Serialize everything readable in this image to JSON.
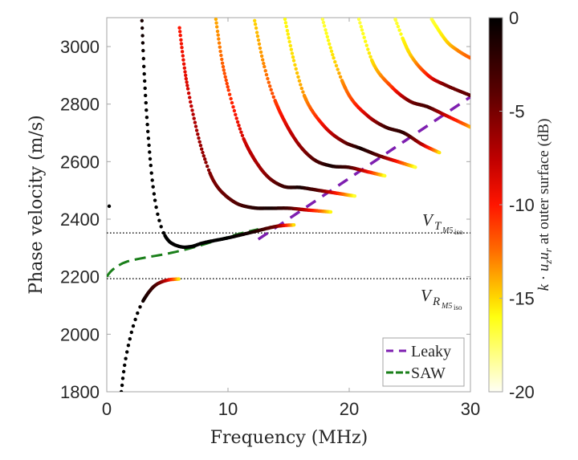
{
  "chart_data": {
    "type": "scatter",
    "title": "",
    "xlabel": "Frequency (MHz)",
    "ylabel": "Phase velocity (m/s)",
    "xlim": [
      0,
      30
    ],
    "ylim": [
      1800,
      3100
    ],
    "xticks": [
      "0",
      "10",
      "20",
      "30"
    ],
    "xtick_values": [
      0,
      10,
      20,
      30
    ],
    "yticks": [
      "1800",
      "2000",
      "2200",
      "2400",
      "2600",
      "2800",
      "3000"
    ],
    "ytick_values": [
      1800,
      2000,
      2200,
      2400,
      2600,
      2800,
      3000
    ],
    "grid": false,
    "colorbar": {
      "label": "k · u_z u_r at outer surface (dB)",
      "label_parts": {
        "k": "k",
        "dot": " · ",
        "uz": "u",
        "uz_sub": "z",
        "ur": "u",
        "ur_sub": "r",
        "rest": " at outer surface (dB)"
      },
      "range": [
        -20,
        0
      ],
      "ticks": [
        "0",
        "-5",
        "-10",
        "-15",
        "-20"
      ],
      "tick_values": [
        0,
        -5,
        -10,
        -15,
        -20
      ],
      "colormap": "hot (black-red-orange-yellow-white)"
    },
    "reference_lines": [
      {
        "name": "V_T_M5_iso",
        "label_main": "V",
        "label_sub": "T",
        "label_subsub": "M5",
        "label_subsubsub": "iso",
        "y": 2352,
        "style": "dotted"
      },
      {
        "name": "V_R_M5_iso",
        "label_main": "V",
        "label_sub": "R",
        "label_subsub": "M5",
        "label_subsubsub": "iso",
        "y": 2193,
        "style": "dotted"
      }
    ],
    "legend": {
      "placement": "bottom-right",
      "entries": [
        {
          "label": "Leaky",
          "color": "#7e1fb0",
          "style": "dashed"
        },
        {
          "label": "SAW",
          "color": "#1a7f1a",
          "style": "dashed"
        }
      ]
    },
    "series": [
      {
        "name": "Leaky",
        "type": "line",
        "color": "#7e1fb0",
        "x": [
          12.5,
          30
        ],
        "y": [
          2330,
          2825
        ]
      },
      {
        "name": "SAW",
        "type": "line",
        "color": "#1a7f1a",
        "x": [
          0,
          0.5,
          1.5,
          3,
          5,
          7,
          9,
          11,
          12.5
        ],
        "y": [
          2200,
          2225,
          2250,
          2265,
          2280,
          2300,
          2325,
          2350,
          2365
        ]
      },
      {
        "name": "mode-0-lower",
        "x": [
          1.2,
          1.5,
          2,
          2.6,
          3.2,
          4,
          5,
          6
        ],
        "y": [
          1800,
          1900,
          2000,
          2080,
          2130,
          2170,
          2188,
          2192
        ],
        "db": [
          0,
          0,
          0,
          0,
          -1,
          -3,
          -8,
          -16
        ]
      },
      {
        "name": "mode-0-isolated-point",
        "x": [
          0.2
        ],
        "y": [
          2445
        ],
        "db": [
          0
        ]
      },
      {
        "name": "mode-1",
        "x": [
          2.9,
          3.1,
          3.4,
          3.8,
          4.3,
          5,
          6,
          7,
          8,
          10,
          12,
          14,
          15.5
        ],
        "y": [
          3090,
          2900,
          2700,
          2520,
          2400,
          2330,
          2305,
          2305,
          2318,
          2335,
          2355,
          2375,
          2380
        ],
        "db": [
          -1,
          0,
          0,
          0,
          0,
          0,
          0,
          0,
          0,
          0,
          -1,
          -5,
          -16
        ]
      },
      {
        "name": "mode-2",
        "x": [
          6,
          6.5,
          7.2,
          8,
          9,
          10.5,
          12,
          13.5,
          15,
          16.5,
          18.5
        ],
        "y": [
          3065,
          2900,
          2750,
          2620,
          2520,
          2460,
          2440,
          2438,
          2438,
          2432,
          2425
        ],
        "db": [
          -10,
          -9,
          -7,
          -6,
          -5,
          -4,
          -2,
          -1,
          -3,
          -8,
          -16
        ]
      },
      {
        "name": "mode-3",
        "x": [
          9,
          9.6,
          10.5,
          11.5,
          13,
          14.5,
          16,
          17.5,
          19,
          20.5
        ],
        "y": [
          3095,
          2930,
          2780,
          2660,
          2560,
          2515,
          2510,
          2500,
          2490,
          2480
        ],
        "db": [
          -14,
          -12,
          -10,
          -8,
          -6,
          -3,
          -1,
          -4,
          -10,
          -17
        ],
        "dotted_until": 3
      },
      {
        "name": "mode-4",
        "x": [
          12.2,
          13,
          14,
          15.5,
          17,
          18.5,
          20,
          21.5,
          23
        ],
        "y": [
          3090,
          2930,
          2800,
          2680,
          2610,
          2585,
          2580,
          2565,
          2550
        ],
        "db": [
          -15,
          -13,
          -11,
          -7,
          -4,
          -1,
          -3,
          -9,
          -17
        ]
      },
      {
        "name": "mode-5",
        "x": [
          14.7,
          15.5,
          16.5,
          18,
          19.5,
          21,
          22.5,
          24,
          25.5
        ],
        "y": [
          3095,
          2940,
          2810,
          2720,
          2670,
          2645,
          2620,
          2600,
          2580
        ],
        "db": [
          -16,
          -15,
          -13,
          -9,
          -5,
          -1,
          -4,
          -10,
          -17
        ]
      },
      {
        "name": "mode-6",
        "x": [
          17.8,
          18.8,
          20,
          21.5,
          23,
          24.5,
          26,
          27.5
        ],
        "y": [
          3095,
          2950,
          2830,
          2760,
          2720,
          2700,
          2660,
          2630
        ],
        "db": [
          -17,
          -15,
          -12,
          -8,
          -3,
          -2,
          -7,
          -16
        ]
      },
      {
        "name": "mode-7",
        "x": [
          20.8,
          22,
          23.5,
          25,
          26.5,
          28,
          30
        ],
        "y": [
          3095,
          2940,
          2860,
          2810,
          2790,
          2760,
          2720
        ],
        "db": [
          -17,
          -15,
          -11,
          -5,
          -3,
          -8,
          -14
        ]
      },
      {
        "name": "mode-8",
        "x": [
          23.8,
          25,
          26.5,
          28,
          30
        ],
        "y": [
          3095,
          2975,
          2900,
          2865,
          2830
        ],
        "db": [
          -17,
          -15,
          -10,
          -5,
          -4
        ]
      },
      {
        "name": "mode-9",
        "x": [
          26.8,
          28,
          29,
          30
        ],
        "y": [
          3095,
          3020,
          2985,
          2960
        ],
        "db": [
          -17,
          -15,
          -13,
          -12
        ]
      }
    ]
  }
}
